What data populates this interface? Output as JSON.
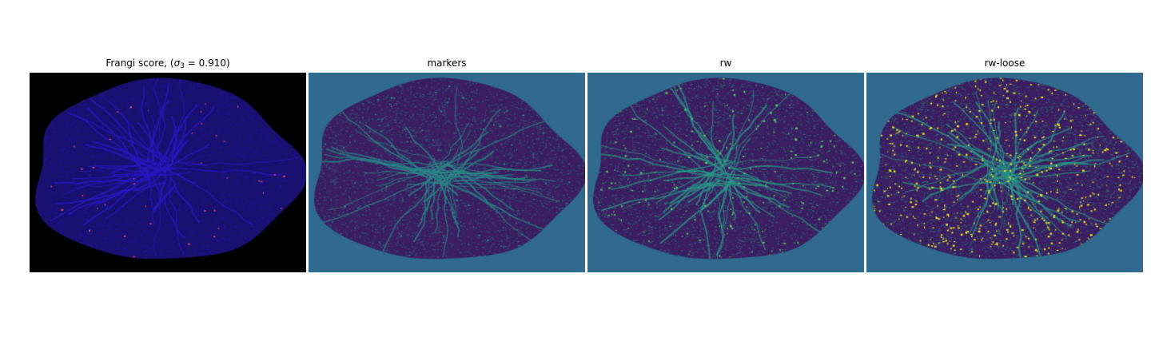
{
  "figure": {
    "panels": [
      {
        "title_prefix": "Frangi score, (",
        "title_sigma": "σ",
        "title_sub": "3",
        "title_suffix": " = 0.910)",
        "background": "#000000",
        "tissue": "#1a1070",
        "vessel": "#2a18c8",
        "highlight": "#e0506a"
      },
      {
        "title": "markers",
        "background": "#306a8e",
        "tissue": "#3b1f62",
        "vessel": "#2a8a8a",
        "highlight": "#2a8a8a"
      },
      {
        "title": "rw",
        "background": "#306a8e",
        "tissue": "#3b1f62",
        "vessel": "#2a9a88",
        "highlight": "#5ec962"
      },
      {
        "title": "rw-loose",
        "background": "#306a8e",
        "tissue": "#3b1f62",
        "vessel": "#2a9a88",
        "highlight": "#e8e420"
      }
    ]
  }
}
